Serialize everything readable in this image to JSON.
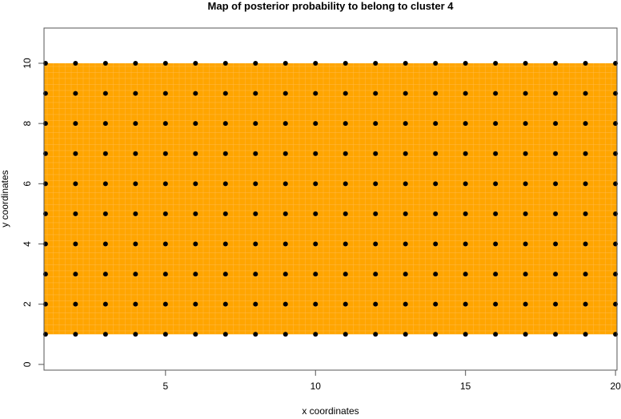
{
  "chart_data": {
    "type": "heatmap",
    "title": "Map of posterior probability to belong to cluster  4",
    "xlabel": "x coordinates",
    "ylabel": "y coordinates",
    "xlim": [
      0.95,
      20.05
    ],
    "ylim": [
      -0.19,
      11.17
    ],
    "xticks": [
      5,
      10,
      15,
      20
    ],
    "yticks": [
      0,
      2,
      4,
      6,
      8,
      10
    ],
    "grid": false,
    "fill_color": "#FFA500",
    "fill_extent": {
      "x": [
        1,
        20
      ],
      "y": [
        1,
        10
      ]
    },
    "posterior_probability": 1,
    "points": {
      "x": [
        1,
        2,
        3,
        4,
        5,
        6,
        7,
        8,
        9,
        10,
        11,
        12,
        13,
        14,
        15,
        16,
        17,
        18,
        19,
        20
      ],
      "y": [
        1,
        2,
        3,
        4,
        5,
        6,
        7,
        8,
        9,
        10
      ],
      "color": "#000000"
    }
  }
}
